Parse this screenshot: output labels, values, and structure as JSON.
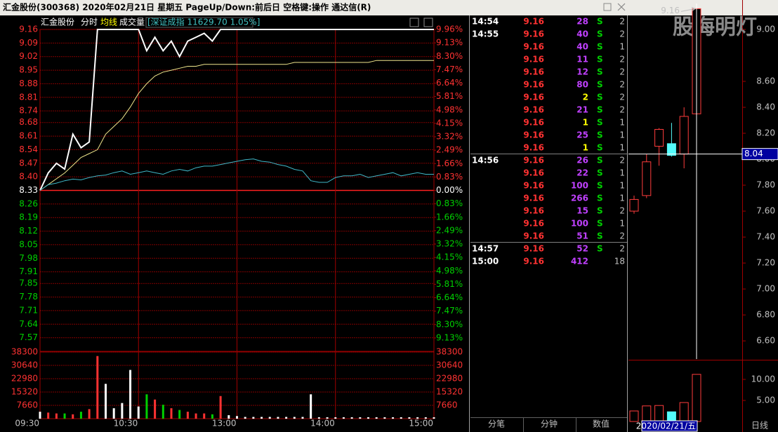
{
  "window": {
    "title": "汇金股份(300368)  2020年02月21日 星期五  PageUp/Down:前后日 空格键:操作 通达信(R)"
  },
  "watermark": "股海明灯",
  "chart_data": [
    {
      "type": "line",
      "title": "汇金股份",
      "header_tabs": [
        "分时",
        "均线",
        "成交量"
      ],
      "index_label": "[深证成指 11629.70 1.05%]",
      "x": [
        0,
        5,
        10,
        15,
        20,
        25,
        30,
        35,
        40,
        45,
        50,
        55,
        60,
        65,
        70,
        75,
        80,
        85,
        90,
        95,
        100,
        105,
        110,
        115,
        120,
        125,
        130,
        135,
        140,
        145,
        150,
        155,
        160,
        165,
        170,
        175,
        180,
        185,
        190,
        195,
        200,
        205,
        210,
        215,
        220,
        225,
        230,
        235,
        240
      ],
      "xlim": [
        0,
        240
      ],
      "xticks": [
        {
          "value": 0,
          "label": "09:30"
        },
        {
          "value": 60,
          "label": "10:30"
        },
        {
          "value": 120,
          "label": "13:00"
        },
        {
          "value": 180,
          "label": "14:00"
        },
        {
          "value": 240,
          "label": "15:00"
        }
      ],
      "ylim": [
        7.5,
        9.16
      ],
      "yticks": [
        9.16,
        9.09,
        9.02,
        8.95,
        8.88,
        8.81,
        8.74,
        8.68,
        8.61,
        8.54,
        8.47,
        {
          "value": 8.4,
          "label": "8.40"
        },
        8.33,
        8.26,
        8.19,
        8.12,
        8.05,
        7.98,
        7.91,
        7.85,
        7.78,
        7.71,
        7.64,
        7.57
      ],
      "y2lim": [
        -9.96,
        9.96
      ],
      "y2ticks": [
        {
          "value": 9.96,
          "label": "9.96%"
        },
        {
          "value": 9.13,
          "label": "9.13%"
        },
        {
          "value": 8.3,
          "label": "8.30%"
        },
        {
          "value": 7.47,
          "label": "7.47%"
        },
        {
          "value": 6.64,
          "label": "6.64%"
        },
        {
          "value": 5.81,
          "label": "5.81%"
        },
        {
          "value": 4.98,
          "label": "4.98%"
        },
        {
          "value": 4.15,
          "label": "4.15%"
        },
        {
          "value": 3.32,
          "label": "3.32%"
        },
        {
          "value": 2.49,
          "label": "2.49%"
        },
        {
          "value": 1.66,
          "label": "1.66%"
        },
        {
          "value": 0.83,
          "label": "0.83%"
        },
        {
          "value": 0,
          "label": "0.00%"
        },
        {
          "value": -0.83,
          "label": "0.83%"
        },
        {
          "value": -1.66,
          "label": "1.66%"
        },
        {
          "value": -2.49,
          "label": "2.49%"
        },
        {
          "value": -3.32,
          "label": "3.32%"
        },
        {
          "value": -4.15,
          "label": "4.15%"
        },
        {
          "value": -4.98,
          "label": "4.98%"
        },
        {
          "value": -5.81,
          "label": "5.81%"
        },
        {
          "value": -6.64,
          "label": "6.64%"
        },
        {
          "value": -7.47,
          "label": "7.47%"
        },
        {
          "value": -8.3,
          "label": "8.30%"
        },
        {
          "value": -9.13,
          "label": "9.13%"
        }
      ],
      "grid": true,
      "series": [
        {
          "color": "#ffffff",
          "values": [
            8.33,
            8.42,
            8.47,
            8.44,
            8.62,
            8.55,
            8.58,
            9.16,
            9.16,
            9.16,
            9.16,
            9.16,
            9.16,
            9.05,
            9.12,
            9.05,
            9.1,
            9.02,
            9.1,
            9.12,
            9.14,
            9.1,
            9.16,
            9.16,
            9.16,
            9.16,
            9.16,
            9.16,
            9.16,
            9.16,
            9.16,
            9.16,
            9.16,
            9.16,
            9.16,
            9.16,
            9.16,
            9.16,
            9.16,
            9.16,
            9.16,
            9.16,
            9.16,
            9.16,
            9.16,
            9.16,
            9.16,
            9.16,
            9.16
          ]
        },
        {
          "color": "#f0e68c",
          "values": [
            8.33,
            8.36,
            8.39,
            8.42,
            8.46,
            8.5,
            8.52,
            8.54,
            8.62,
            8.66,
            8.7,
            8.76,
            8.83,
            8.88,
            8.92,
            8.94,
            8.95,
            8.96,
            8.97,
            8.97,
            8.98,
            8.98,
            8.98,
            8.98,
            8.98,
            8.98,
            8.98,
            8.98,
            8.98,
            8.98,
            8.98,
            8.99,
            8.99,
            8.99,
            8.99,
            8.99,
            8.99,
            8.99,
            8.99,
            8.99,
            8.99,
            9.0,
            9.0,
            9.0,
            9.0,
            9.0,
            9.0,
            9.0,
            9.0
          ]
        },
        {
          "color": "#3fb8c8",
          "axis": "y2",
          "values": [
            0,
            0.35,
            0.45,
            0.6,
            0.7,
            0.65,
            0.8,
            0.9,
            0.95,
            1.1,
            1.2,
            1.0,
            1.1,
            1.2,
            1.1,
            1.0,
            1.2,
            1.3,
            1.2,
            1.4,
            1.5,
            1.5,
            1.6,
            1.7,
            1.8,
            1.9,
            1.95,
            1.8,
            1.75,
            1.6,
            1.5,
            1.3,
            1.2,
            0.6,
            0.5,
            0.5,
            0.8,
            0.9,
            0.9,
            1.0,
            0.8,
            0.9,
            1.0,
            1.1,
            0.9,
            1.0,
            1.1,
            1.0,
            1.0
          ]
        }
      ],
      "volume": {
        "values": [
          4000,
          3500,
          3000,
          3000,
          2500,
          4000,
          5500,
          36000,
          20000,
          6000,
          9000,
          28000,
          7000,
          14000,
          11000,
          8000,
          6000,
          5000,
          4000,
          3000,
          3000,
          2500,
          13000,
          2000,
          1500,
          1000,
          1000,
          1000,
          1000,
          1000,
          1000,
          1000,
          1000,
          14000,
          800,
          800,
          800,
          800,
          800,
          800,
          800,
          800,
          800,
          800,
          800,
          800,
          800,
          800,
          800
        ],
        "ylim": [
          0,
          38300
        ],
        "yticks": [
          38300,
          30640,
          22980,
          15320,
          7660
        ]
      }
    },
    {
      "type": "candlestick",
      "categories": [
        null,
        null,
        null,
        null,
        null,
        "2020/02/21/五"
      ],
      "open": [
        7.6,
        7.72,
        8.1,
        8.12,
        8.04,
        8.35
      ],
      "high": [
        7.72,
        8.04,
        8.24,
        8.28,
        8.4,
        9.16
      ],
      "low": [
        7.58,
        7.7,
        7.95,
        8.02,
        7.93,
        8.28
      ],
      "close": [
        7.69,
        7.98,
        8.23,
        8.03,
        8.33,
        9.16
      ],
      "up_color": "#ff3c3c",
      "down_color": "#54fcfc",
      "ylim": [
        6.46,
        9.2
      ],
      "yticks": [
        {
          "value": 9,
          "label": "9.00"
        },
        {
          "value": 8.6,
          "label": "8.60"
        },
        {
          "value": 8.4,
          "label": "8.40"
        },
        {
          "value": 8.2,
          "label": "8.20"
        },
        {
          "value": 8,
          "label": "8.00"
        },
        {
          "value": 7.8,
          "label": "7.80"
        },
        {
          "value": 7.6,
          "label": "7.60"
        },
        {
          "value": 7.4,
          "label": "7.40"
        },
        {
          "value": 7.2,
          "label": "7.20"
        },
        {
          "value": 7,
          "label": "7.00"
        },
        {
          "value": 6.8,
          "label": "6.80"
        },
        {
          "value": 6.6,
          "label": "6.60"
        }
      ],
      "crosshair": 8.04,
      "period": "日线",
      "volume": {
        "values": [
          2.5,
          3.7,
          3.8,
          2.3,
          4.5,
          11.2
        ],
        "ylim": [
          0,
          14.5
        ],
        "yticks": [
          {
            "value": 10,
            "label": "10.00"
          },
          {
            "value": 5,
            "label": "5.00"
          }
        ]
      }
    }
  ],
  "trade_list": {
    "rows": [
      {
        "time": "14:54",
        "price": 9.16,
        "volume": 28,
        "side": "S",
        "count": 2
      },
      {
        "time": "14:55",
        "price": 9.16,
        "volume": 40,
        "side": "S",
        "count": 2
      },
      {
        "time": null,
        "price": 9.16,
        "volume": 40,
        "side": "S",
        "count": 1
      },
      {
        "time": null,
        "price": 9.16,
        "volume": 11,
        "side": "S",
        "count": 2
      },
      {
        "time": null,
        "price": 9.16,
        "volume": 12,
        "side": "S",
        "count": 2
      },
      {
        "time": null,
        "price": 9.16,
        "volume": 80,
        "side": "S",
        "count": 2
      },
      {
        "time": null,
        "price": 9.16,
        "volume": 2,
        "side": "S",
        "count": 2
      },
      {
        "time": null,
        "price": 9.16,
        "volume": 21,
        "side": "S",
        "count": 2
      },
      {
        "time": null,
        "price": 9.16,
        "volume": 1,
        "side": "S",
        "count": 1
      },
      {
        "time": null,
        "price": 9.16,
        "volume": 25,
        "side": "S",
        "count": 1
      },
      {
        "time": null,
        "price": 9.16,
        "volume": 1,
        "side": "S",
        "count": 1
      },
      {
        "time": "14:56",
        "price": 9.16,
        "volume": 26,
        "side": "S",
        "count": 2
      },
      {
        "time": null,
        "price": 9.16,
        "volume": 22,
        "side": "S",
        "count": 1
      },
      {
        "time": null,
        "price": 9.16,
        "volume": 100,
        "side": "S",
        "count": 1
      },
      {
        "time": null,
        "price": 9.16,
        "volume": 266,
        "side": "S",
        "count": 1
      },
      {
        "time": null,
        "price": 9.16,
        "volume": 15,
        "side": "S",
        "count": 2
      },
      {
        "time": null,
        "price": 9.16,
        "volume": 100,
        "side": "S",
        "count": 1
      },
      {
        "time": null,
        "price": 9.16,
        "volume": 51,
        "side": "S",
        "count": 2
      },
      {
        "time": "14:57",
        "price": 9.16,
        "volume": 52,
        "side": "S",
        "count": 2
      },
      {
        "time": "15:00",
        "price": 9.16,
        "volume": 412,
        "side": null,
        "count": 18
      }
    ],
    "tabs": [
      "分笔",
      "分钟",
      "数值"
    ]
  }
}
